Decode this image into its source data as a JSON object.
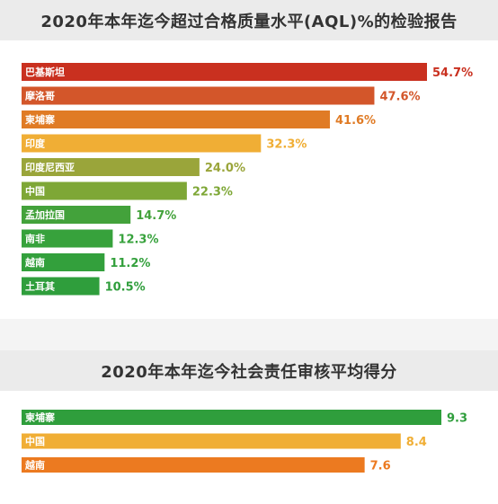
{
  "chart_data": [
    {
      "type": "bar",
      "orientation": "horizontal",
      "title": "2020年本年迄今超过合格质量水平(AQL)%的检验报告",
      "categories": [
        "巴基斯坦",
        "摩洛哥",
        "柬埔寨",
        "印度",
        "印度尼西亚",
        "中国",
        "孟加拉国",
        "南非",
        "越南",
        "土耳其"
      ],
      "values": [
        54.7,
        47.6,
        41.6,
        32.3,
        24.0,
        22.3,
        14.7,
        12.3,
        11.2,
        10.5
      ],
      "value_labels": [
        "54.7%",
        "47.6%",
        "41.6%",
        "32.3%",
        "24.0%",
        "22.3%",
        "14.7%",
        "12.3%",
        "11.2%",
        "10.5%"
      ],
      "colors": [
        "#c9301f",
        "#d3562a",
        "#e07b25",
        "#f0ae35",
        "#9aa53a",
        "#7ea736",
        "#43a23b",
        "#37a23c",
        "#33a03c",
        "#2f9e3c"
      ],
      "xlim": [
        0,
        54.7
      ],
      "grid": false,
      "legend": "none"
    },
    {
      "type": "bar",
      "orientation": "horizontal",
      "title": "2020年本年迄今社会责任审核平均得分",
      "categories": [
        "柬埔寨",
        "中国",
        "越南"
      ],
      "values": [
        9.3,
        8.4,
        7.6
      ],
      "value_labels": [
        "9.3",
        "8.4",
        "7.6"
      ],
      "colors": [
        "#2f9e3c",
        "#f0ae35",
        "#ec7a20"
      ],
      "xlim": [
        0,
        9.3
      ],
      "grid": false,
      "legend": "none"
    }
  ]
}
